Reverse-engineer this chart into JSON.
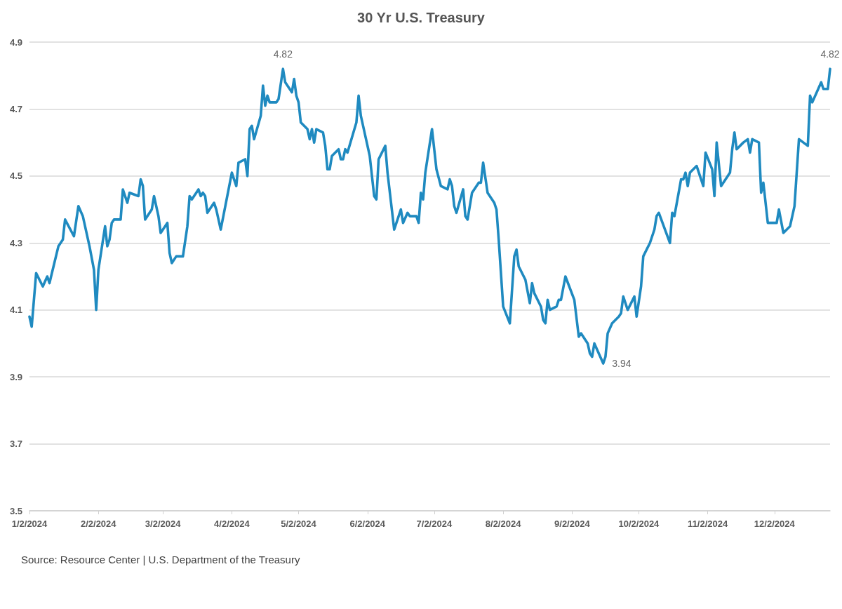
{
  "chart_data": {
    "type": "line",
    "title": "30 Yr U.S. Treasury",
    "x": [
      "2024-01-02",
      "2024-01-03",
      "2024-01-05",
      "2024-01-08",
      "2024-01-10",
      "2024-01-11",
      "2024-01-15",
      "2024-01-17",
      "2024-01-18",
      "2024-01-22",
      "2024-01-24",
      "2024-01-26",
      "2024-01-29",
      "2024-01-31",
      "2024-02-01",
      "2024-02-02",
      "2024-02-05",
      "2024-02-06",
      "2024-02-07",
      "2024-02-08",
      "2024-02-09",
      "2024-02-12",
      "2024-02-13",
      "2024-02-15",
      "2024-02-16",
      "2024-02-20",
      "2024-02-21",
      "2024-02-22",
      "2024-02-23",
      "2024-02-26",
      "2024-02-27",
      "2024-02-29",
      "2024-03-01",
      "2024-03-04",
      "2024-03-05",
      "2024-03-06",
      "2024-03-08",
      "2024-03-11",
      "2024-03-13",
      "2024-03-14",
      "2024-03-15",
      "2024-03-18",
      "2024-03-19",
      "2024-03-20",
      "2024-03-21",
      "2024-03-22",
      "2024-03-25",
      "2024-03-26",
      "2024-03-28",
      "2024-04-02",
      "2024-04-04",
      "2024-04-05",
      "2024-04-08",
      "2024-04-09",
      "2024-04-10",
      "2024-04-11",
      "2024-04-12",
      "2024-04-15",
      "2024-04-16",
      "2024-04-17",
      "2024-04-18",
      "2024-04-19",
      "2024-04-22",
      "2024-04-23",
      "2024-04-25",
      "2024-04-26",
      "2024-04-29",
      "2024-04-30",
      "2024-05-01",
      "2024-05-02",
      "2024-05-03",
      "2024-05-06",
      "2024-05-07",
      "2024-05-08",
      "2024-05-09",
      "2024-05-10",
      "2024-05-13",
      "2024-05-14",
      "2024-05-15",
      "2024-05-16",
      "2024-05-17",
      "2024-05-20",
      "2024-05-21",
      "2024-05-22",
      "2024-05-23",
      "2024-05-24",
      "2024-05-28",
      "2024-05-29",
      "2024-05-30",
      "2024-06-03",
      "2024-06-05",
      "2024-06-06",
      "2024-06-07",
      "2024-06-10",
      "2024-06-11",
      "2024-06-14",
      "2024-06-17",
      "2024-06-18",
      "2024-06-20",
      "2024-06-21",
      "2024-06-24",
      "2024-06-25",
      "2024-06-26",
      "2024-06-27",
      "2024-06-28",
      "2024-07-01",
      "2024-07-03",
      "2024-07-05",
      "2024-07-08",
      "2024-07-09",
      "2024-07-10",
      "2024-07-11",
      "2024-07-12",
      "2024-07-15",
      "2024-07-16",
      "2024-07-17",
      "2024-07-19",
      "2024-07-22",
      "2024-07-23",
      "2024-07-24",
      "2024-07-26",
      "2024-07-29",
      "2024-07-30",
      "2024-07-31",
      "2024-08-02",
      "2024-08-05",
      "2024-08-07",
      "2024-08-08",
      "2024-08-09",
      "2024-08-12",
      "2024-08-14",
      "2024-08-15",
      "2024-08-16",
      "2024-08-19",
      "2024-08-20",
      "2024-08-21",
      "2024-08-22",
      "2024-08-23",
      "2024-08-26",
      "2024-08-27",
      "2024-08-28",
      "2024-08-30",
      "2024-09-03",
      "2024-09-05",
      "2024-09-06",
      "2024-09-09",
      "2024-09-10",
      "2024-09-11",
      "2024-09-12",
      "2024-09-16",
      "2024-09-17",
      "2024-09-18",
      "2024-09-20",
      "2024-09-23",
      "2024-09-24",
      "2024-09-25",
      "2024-09-27",
      "2024-09-30",
      "2024-10-01",
      "2024-10-03",
      "2024-10-04",
      "2024-10-07",
      "2024-10-09",
      "2024-10-10",
      "2024-10-11",
      "2024-10-16",
      "2024-10-17",
      "2024-10-18",
      "2024-10-21",
      "2024-10-22",
      "2024-10-23",
      "2024-10-24",
      "2024-10-25",
      "2024-10-28",
      "2024-10-29",
      "2024-10-31",
      "2024-11-01",
      "2024-11-04",
      "2024-11-05",
      "2024-11-06",
      "2024-11-08",
      "2024-11-12",
      "2024-11-13",
      "2024-11-14",
      "2024-11-15",
      "2024-11-18",
      "2024-11-20",
      "2024-11-21",
      "2024-11-22",
      "2024-11-25",
      "2024-11-26",
      "2024-11-27",
      "2024-11-29",
      "2024-12-03",
      "2024-12-04",
      "2024-12-06",
      "2024-12-09",
      "2024-12-11",
      "2024-12-13",
      "2024-12-17",
      "2024-12-18",
      "2024-12-19",
      "2024-12-23",
      "2024-12-24",
      "2024-12-26",
      "2024-12-27"
    ],
    "series": [
      {
        "color": "#1f8ac0",
        "values": [
          4.08,
          4.05,
          4.21,
          4.17,
          4.2,
          4.18,
          4.29,
          4.31,
          4.37,
          4.32,
          4.41,
          4.38,
          4.29,
          4.22,
          4.1,
          4.22,
          4.35,
          4.29,
          4.31,
          4.36,
          4.37,
          4.37,
          4.46,
          4.42,
          4.45,
          4.44,
          4.49,
          4.47,
          4.37,
          4.4,
          4.44,
          4.38,
          4.33,
          4.36,
          4.27,
          4.24,
          4.26,
          4.26,
          4.35,
          4.44,
          4.43,
          4.46,
          4.44,
          4.45,
          4.44,
          4.39,
          4.42,
          4.4,
          4.34,
          4.51,
          4.47,
          4.54,
          4.55,
          4.5,
          4.64,
          4.65,
          4.61,
          4.68,
          4.77,
          4.71,
          4.74,
          4.72,
          4.72,
          4.73,
          4.82,
          4.78,
          4.75,
          4.79,
          4.74,
          4.72,
          4.66,
          4.64,
          4.61,
          4.64,
          4.6,
          4.64,
          4.63,
          4.59,
          4.52,
          4.52,
          4.56,
          4.58,
          4.55,
          4.55,
          4.58,
          4.57,
          4.66,
          4.74,
          4.68,
          4.56,
          4.44,
          4.43,
          4.55,
          4.59,
          4.51,
          4.34,
          4.4,
          4.36,
          4.39,
          4.38,
          4.38,
          4.36,
          4.45,
          4.43,
          4.51,
          4.64,
          4.52,
          4.47,
          4.46,
          4.49,
          4.47,
          4.41,
          4.39,
          4.46,
          4.38,
          4.37,
          4.45,
          4.48,
          4.48,
          4.54,
          4.45,
          4.42,
          4.4,
          4.31,
          4.11,
          4.06,
          4.26,
          4.28,
          4.23,
          4.19,
          4.12,
          4.18,
          4.15,
          4.11,
          4.07,
          4.06,
          4.13,
          4.1,
          4.11,
          4.13,
          4.13,
          4.2,
          4.13,
          4.02,
          4.03,
          4.0,
          3.97,
          3.96,
          4.0,
          3.94,
          3.96,
          4.03,
          4.06,
          4.08,
          4.09,
          4.14,
          4.1,
          4.14,
          4.08,
          4.17,
          4.26,
          4.3,
          4.34,
          4.38,
          4.39,
          4.3,
          4.39,
          4.38,
          4.49,
          4.49,
          4.51,
          4.47,
          4.51,
          4.53,
          4.51,
          4.47,
          4.57,
          4.52,
          4.44,
          4.6,
          4.47,
          4.51,
          4.58,
          4.63,
          4.58,
          4.6,
          4.61,
          4.57,
          4.61,
          4.6,
          4.45,
          4.48,
          4.36,
          4.36,
          4.4,
          4.33,
          4.35,
          4.41,
          4.61,
          4.59,
          4.74,
          4.72,
          4.78,
          4.76,
          4.76,
          4.82
        ]
      }
    ],
    "xlim": [
      "2024-01-02",
      "2024-12-27"
    ],
    "xticks": [
      {
        "value": "2024-01-02",
        "label": "1/2/2024"
      },
      {
        "value": "2024-02-02",
        "label": "2/2/2024"
      },
      {
        "value": "2024-03-02",
        "label": "3/2/2024"
      },
      {
        "value": "2024-04-02",
        "label": "4/2/2024"
      },
      {
        "value": "2024-05-02",
        "label": "5/2/2024"
      },
      {
        "value": "2024-06-02",
        "label": "6/2/2024"
      },
      {
        "value": "2024-07-02",
        "label": "7/2/2024"
      },
      {
        "value": "2024-08-02",
        "label": "8/2/2024"
      },
      {
        "value": "2024-09-02",
        "label": "9/2/2024"
      },
      {
        "value": "2024-10-02",
        "label": "10/2/2024"
      },
      {
        "value": "2024-11-02",
        "label": "11/2/2024"
      },
      {
        "value": "2024-12-02",
        "label": "12/2/2024"
      }
    ],
    "ylim": [
      3.5,
      4.9
    ],
    "yticks": [
      3.5,
      3.7,
      3.9,
      4.1,
      4.3,
      4.5,
      4.7,
      4.9
    ],
    "grid": "y",
    "marker": "none",
    "line_style": "solid",
    "annotations": [
      {
        "text": "4.82",
        "x": "2024-04-25",
        "y": 4.82
      },
      {
        "text": "3.94",
        "x": "2024-09-16",
        "y": 3.94
      },
      {
        "text": "4.82",
        "x": "2024-12-27",
        "y": 4.82
      },
      "Source: Resource Center | U.S. Department of the Treasury"
    ]
  }
}
